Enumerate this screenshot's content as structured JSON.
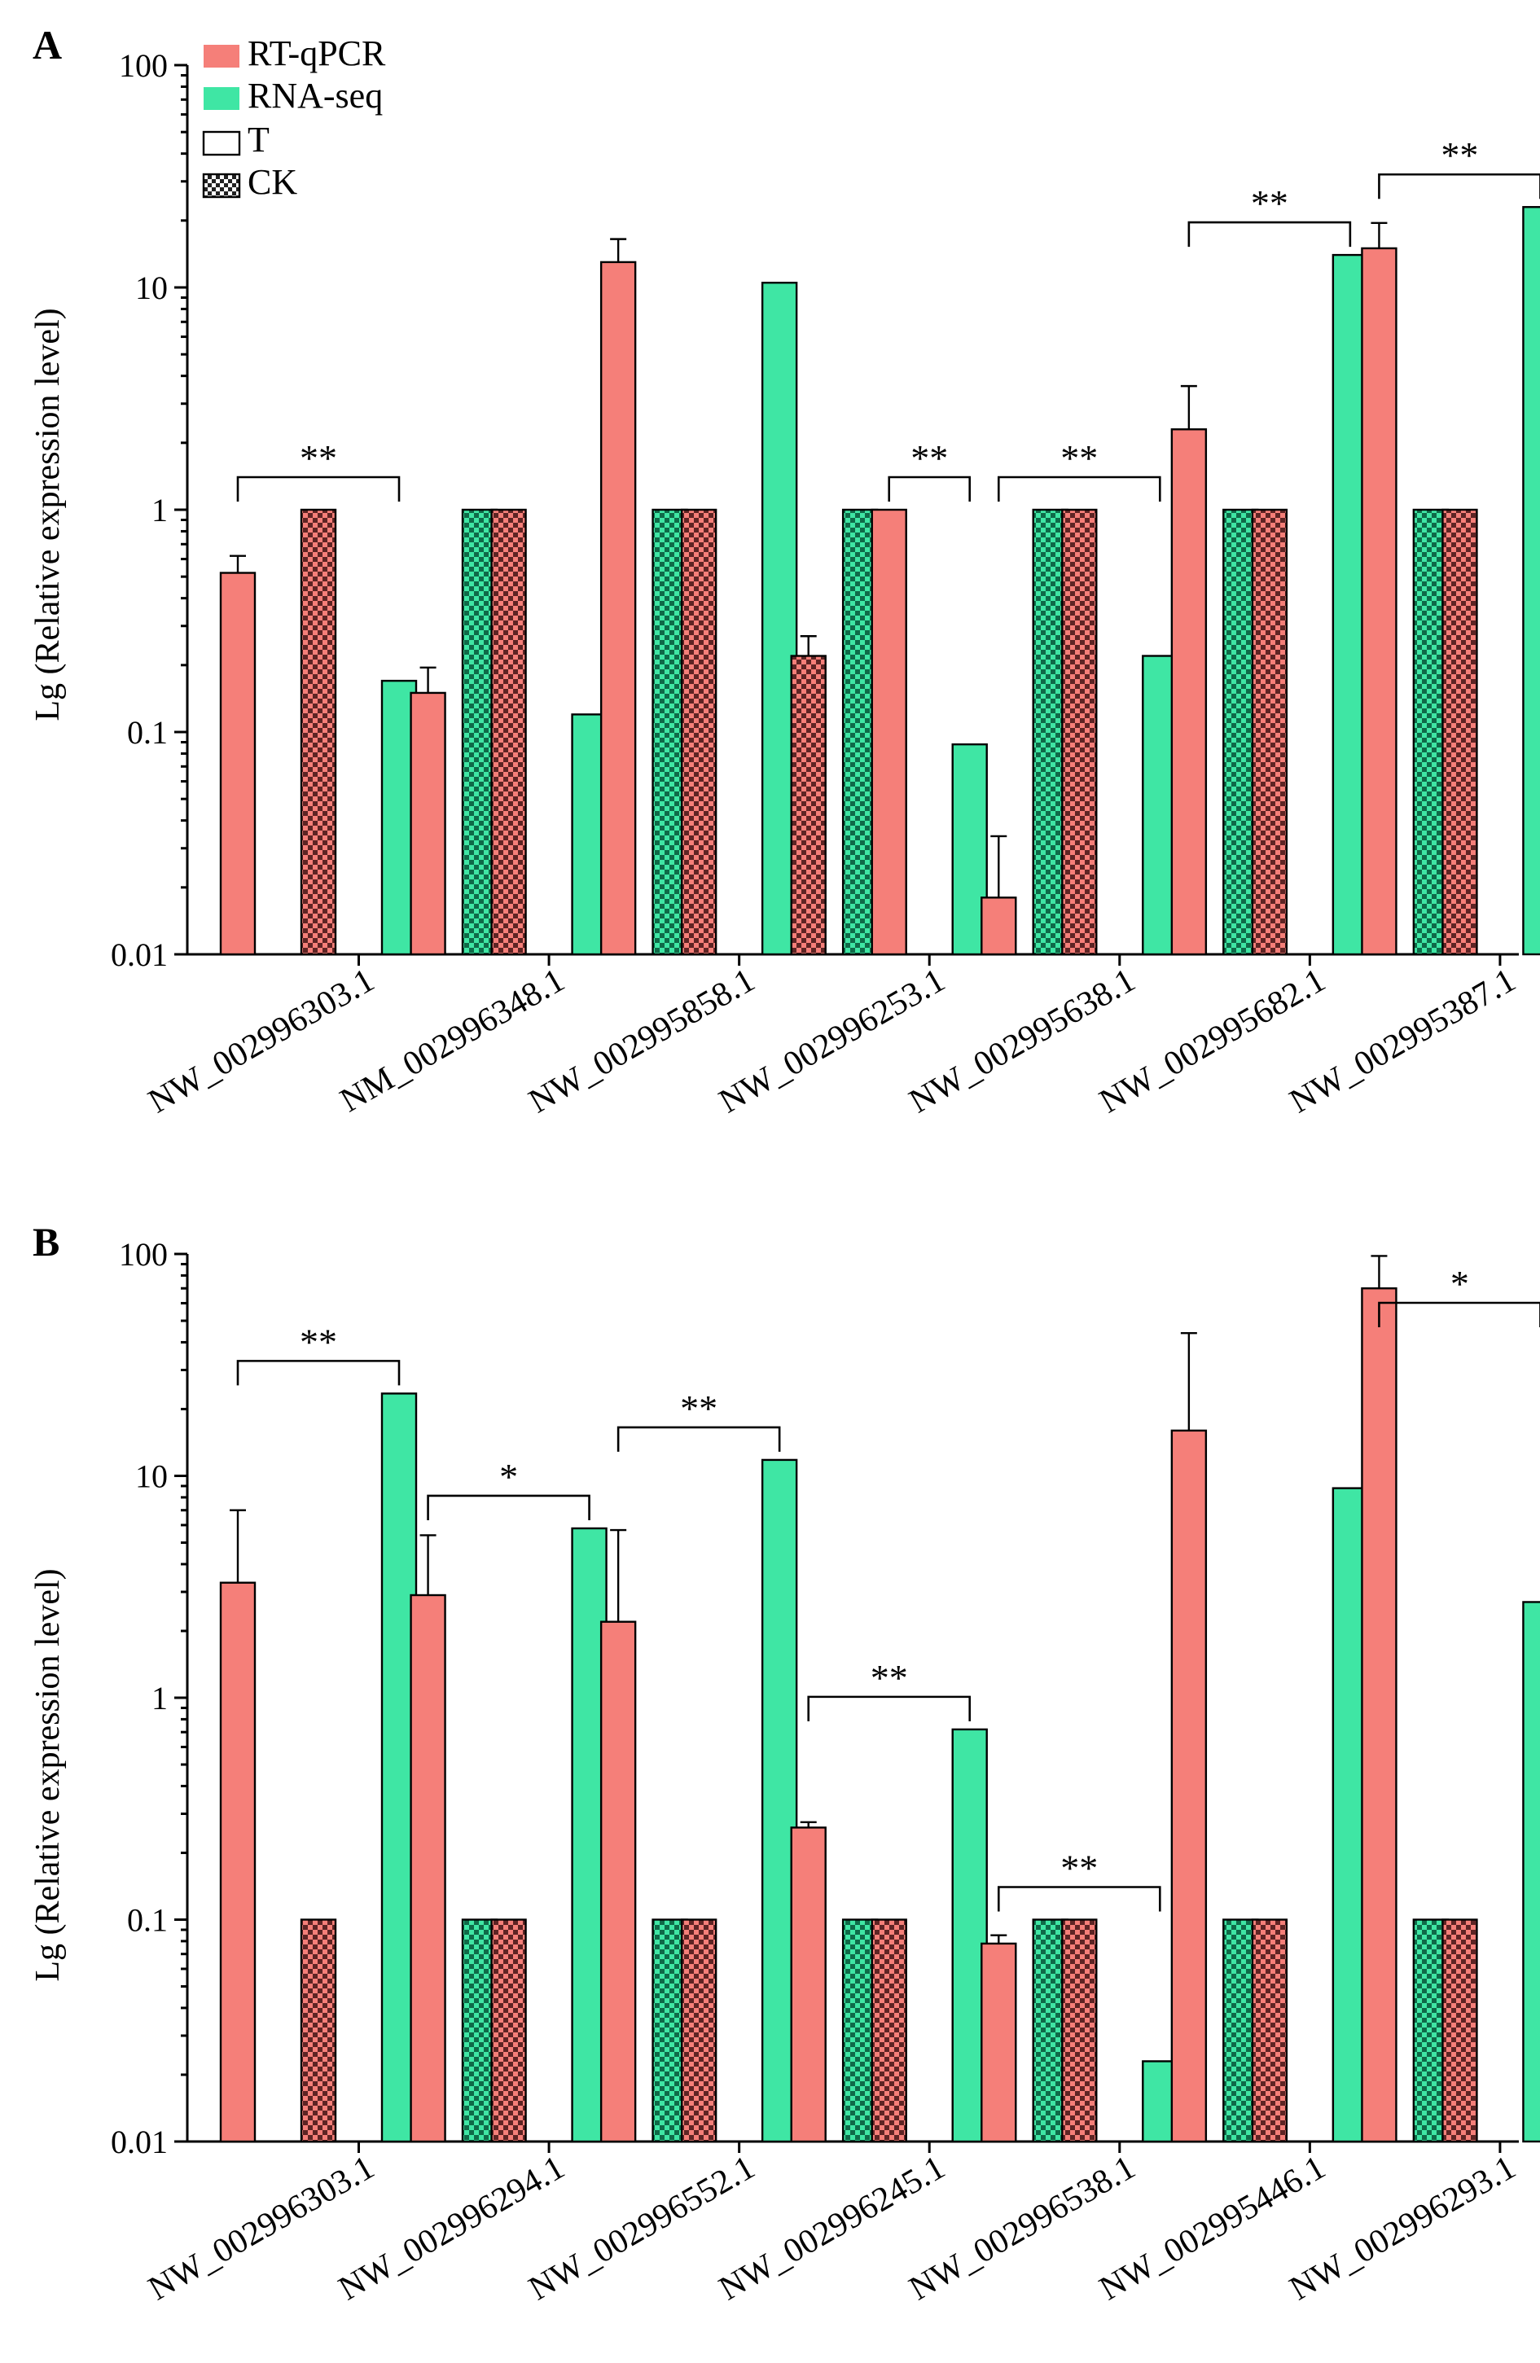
{
  "colors": {
    "rtqpcr": "#f57f79",
    "rnaseq": "#3fe6a4",
    "ck_dark": "#6b2b2b",
    "ck_green_dark": "#137a55"
  },
  "legend": [
    {
      "label": "RT-qPCR",
      "style": "solid-red"
    },
    {
      "label": "RNA-seq",
      "style": "solid-green"
    },
    {
      "label": "T",
      "style": "open"
    },
    {
      "label": "CK",
      "style": "checkered"
    }
  ],
  "chart_data": [
    {
      "type": "bar",
      "panel_label": "A",
      "ylabel": "Lg (Relative expression level)",
      "yscale": "log",
      "ylim": [
        0.01,
        100
      ],
      "yticks": [
        "0.01",
        "0.1",
        "1",
        "10",
        "100"
      ],
      "categories": [
        "NW_002996303.1",
        "NM_002996348.1",
        "NW_002995858.1",
        "NW_002996253.1",
        "NW_002995638.1",
        "NW_002995682.1",
        "NW_002995387.1"
      ],
      "series": [
        {
          "name": "RT-qPCR T",
          "values": [
            0.52,
            0.15,
            13.0,
            1.0,
            0.018,
            2.3,
            15.0
          ],
          "errors": [
            0.1,
            0.045,
            3.5,
            null,
            0.016,
            1.3,
            4.5
          ]
        },
        {
          "name": "RT-qPCR CK",
          "values": [
            1.0,
            1.0,
            1.0,
            0.22,
            1.0,
            1.0,
            1.0
          ],
          "errors": [
            null,
            null,
            null,
            0.05,
            null,
            null,
            null
          ]
        },
        {
          "name": "RNA-seq T",
          "values": [
            0.17,
            0.12,
            10.5,
            0.088,
            0.22,
            14.0,
            23.0
          ]
        },
        {
          "name": "RNA-seq CK",
          "values": [
            1.0,
            1.0,
            1.0,
            1.0,
            1.0,
            1.0,
            1.0
          ]
        }
      ],
      "t_first": [
        true,
        true,
        true,
        false,
        true,
        true,
        true
      ],
      "significance": [
        {
          "category_index": 0,
          "label": "**"
        },
        {
          "category_index": 3,
          "label": "**"
        },
        {
          "category_index": 4,
          "label": "**"
        },
        {
          "category_index": 5,
          "label": "**"
        },
        {
          "category_index": 6,
          "label": "**"
        }
      ]
    },
    {
      "type": "bar",
      "panel_label": "B",
      "ylabel": "Lg (Relative expression level)",
      "yscale": "log",
      "ylim": [
        0.01,
        100
      ],
      "yticks": [
        "0.01",
        "0.1",
        "1",
        "10",
        "100"
      ],
      "categories": [
        "NW_002996303.1",
        "NW_002996294.1",
        "NW_002996552.1",
        "NW_002996245.1",
        "NW_002996538.1",
        "NW_002995446.1",
        "NW_002996293.1"
      ],
      "series": [
        {
          "name": "RT-qPCR T",
          "values": [
            3.3,
            2.9,
            2.2,
            0.26,
            0.078,
            16.0,
            70.0
          ],
          "errors": [
            3.7,
            2.5,
            3.5,
            0.015,
            0.007,
            28.0,
            28.0
          ]
        },
        {
          "name": "RT-qPCR CK",
          "values": [
            0.1,
            0.1,
            0.1,
            0.1,
            0.1,
            0.1,
            0.1
          ]
        },
        {
          "name": "RNA-seq T",
          "values": [
            23.5,
            5.8,
            11.8,
            0.72,
            0.023,
            8.8,
            2.7
          ]
        },
        {
          "name": "RNA-seq CK",
          "values": [
            0.1,
            0.1,
            0.1,
            0.1,
            0.1,
            0.1,
            0.1
          ]
        }
      ],
      "t_first": [
        true,
        true,
        true,
        true,
        true,
        true,
        true
      ],
      "significance": [
        {
          "category_index": 0,
          "label": "**"
        },
        {
          "category_index": 1,
          "label": "*"
        },
        {
          "category_index": 2,
          "label": "**"
        },
        {
          "category_index": 3,
          "label": "**"
        },
        {
          "category_index": 4,
          "label": "**"
        },
        {
          "category_index": 6,
          "label": "*"
        }
      ]
    }
  ]
}
